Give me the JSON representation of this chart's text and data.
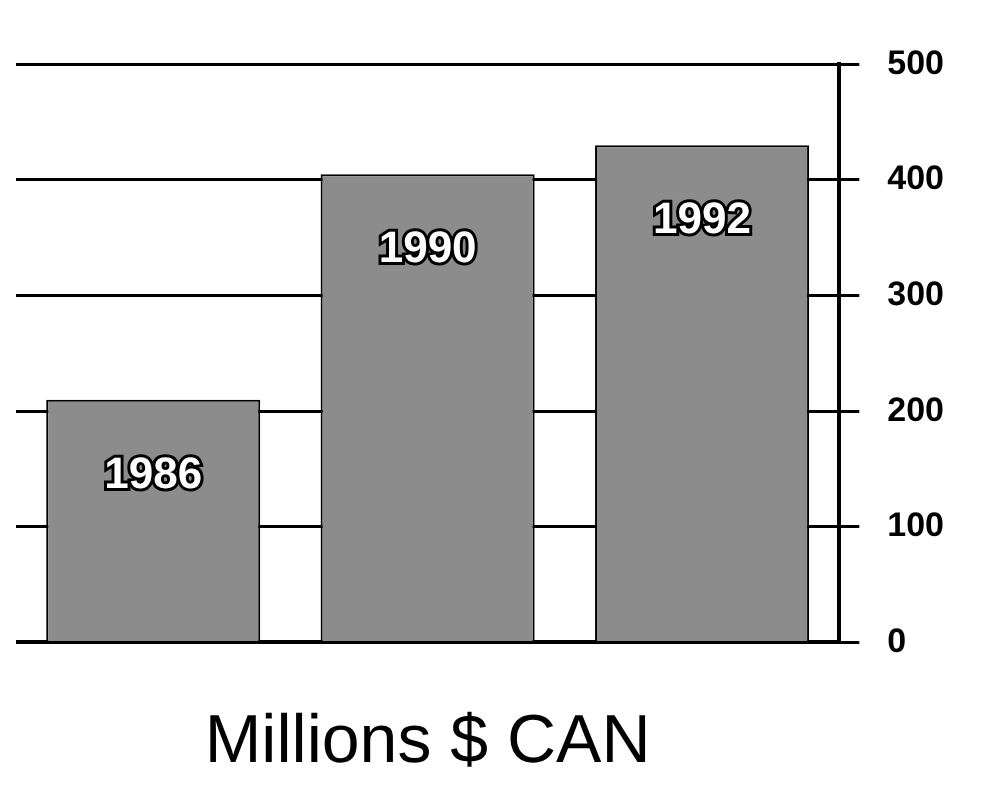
{
  "chart_data": {
    "type": "bar",
    "xlabel": "Millions $ CAN",
    "categories": [
      "1986",
      "1990",
      "1992"
    ],
    "values": [
      210,
      405,
      430
    ],
    "color": "#8c8c8c",
    "ylim": [
      0,
      500
    ],
    "yticks": [
      0,
      100,
      200,
      300,
      400,
      500
    ],
    "grid": "y"
  }
}
